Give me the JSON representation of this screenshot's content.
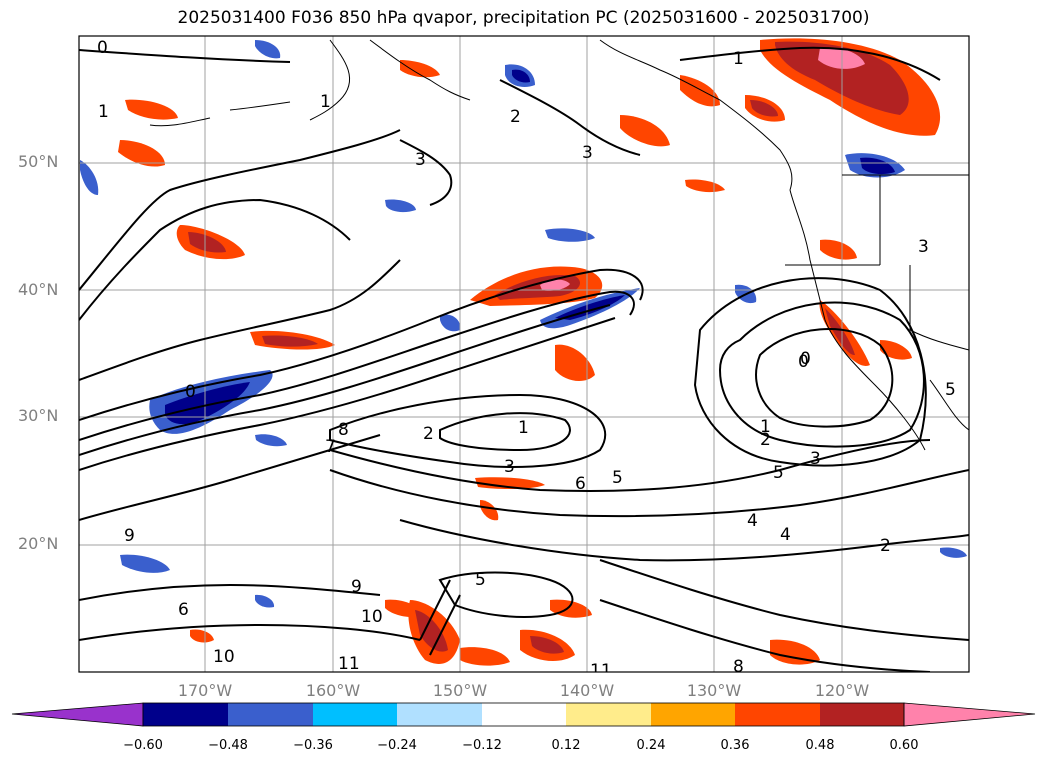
{
  "title": "2025031400 F036 850 hPa qvapor, precipitation PC (2025031600 - 2025031700)",
  "latitude_labels": [
    "50°N",
    "40°N",
    "30°N",
    "20°N"
  ],
  "longitude_labels": [
    "170°W",
    "160°W",
    "150°W",
    "140°W",
    "130°W",
    "120°W"
  ],
  "colorbar": {
    "extend": "both",
    "colors": [
      "#9932cc",
      "#00008b",
      "#3a5fcd",
      "#00bfff",
      "#b0e0ff",
      "#ffffff",
      "#ffec8b",
      "#ffa500",
      "#ff4500",
      "#b22222",
      "#ff82ab"
    ],
    "tick_labels": [
      "−0.60",
      "−0.48",
      "−0.36",
      "−0.24",
      "−0.12",
      "0.12",
      "0.24",
      "0.36",
      "0.48",
      "0.60"
    ]
  },
  "contour_labels": [
    "0",
    "1",
    "2",
    "3",
    "0",
    "0",
    "1",
    "2",
    "3",
    "4",
    "5",
    "6",
    "7",
    "8",
    "9",
    "10",
    "11",
    "1",
    "3",
    "5",
    "3",
    "4",
    "5",
    "2",
    "1",
    "0",
    "3",
    "9",
    "6",
    "5",
    "8",
    "10",
    "11",
    "2",
    "1"
  ],
  "colors": {
    "gridline": "#a0a0a0",
    "contour": "#000000",
    "coastline": "#000000",
    "axis_label": "#808080"
  }
}
